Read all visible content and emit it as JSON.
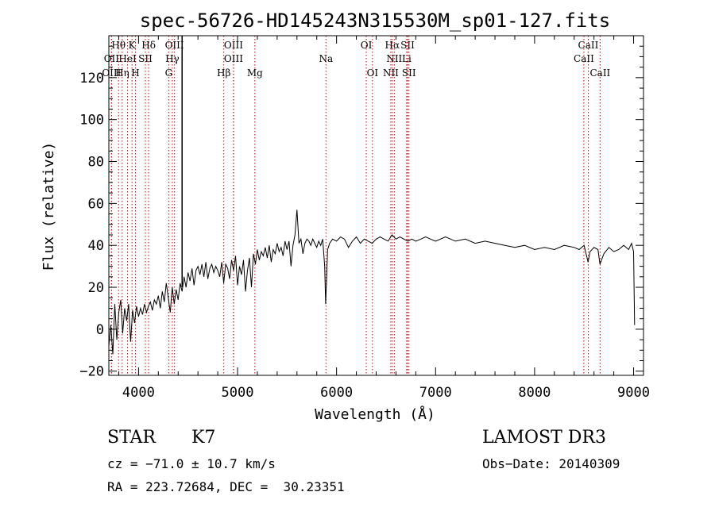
{
  "chart_data": {
    "type": "line",
    "title": "spec-56726-HD145243N315530M_sp01-127.fits",
    "xlabel": "Wavelength (Å)",
    "ylabel": "Flux (relative)",
    "xlim": [
      3700,
      9100
    ],
    "ylim": [
      -22,
      140
    ],
    "xticks": [
      4000,
      5000,
      6000,
      7000,
      8000,
      9000
    ],
    "yticks": [
      -20,
      0,
      20,
      40,
      60,
      80,
      100,
      120
    ],
    "grid": false,
    "series": [
      {
        "name": "spectrum",
        "color": "#000000",
        "x": [
          3700,
          3720,
          3740,
          3760,
          3780,
          3800,
          3820,
          3840,
          3860,
          3880,
          3900,
          3920,
          3940,
          3960,
          3980,
          4000,
          4020,
          4040,
          4060,
          4080,
          4100,
          4120,
          4140,
          4160,
          4180,
          4200,
          4220,
          4240,
          4260,
          4280,
          4300,
          4320,
          4340,
          4360,
          4380,
          4400,
          4420,
          4440,
          4460,
          4480,
          4500,
          4520,
          4540,
          4560,
          4580,
          4600,
          4620,
          4640,
          4660,
          4680,
          4700,
          4720,
          4740,
          4760,
          4780,
          4800,
          4820,
          4840,
          4860,
          4880,
          4900,
          4920,
          4940,
          4960,
          4980,
          5000,
          5020,
          5040,
          5060,
          5080,
          5100,
          5120,
          5140,
          5160,
          5180,
          5200,
          5220,
          5240,
          5260,
          5280,
          5300,
          5320,
          5340,
          5360,
          5380,
          5400,
          5420,
          5440,
          5460,
          5480,
          5500,
          5520,
          5540,
          5560,
          5580,
          5600,
          5620,
          5640,
          5660,
          5680,
          5700,
          5720,
          5740,
          5760,
          5780,
          5800,
          5820,
          5840,
          5860,
          5880,
          5890,
          5900,
          5910,
          5930,
          5960,
          6000,
          6040,
          6080,
          6120,
          6160,
          6200,
          6240,
          6280,
          6320,
          6360,
          6400,
          6440,
          6480,
          6520,
          6560,
          6600,
          6640,
          6680,
          6720,
          6760,
          6800,
          6850,
          6900,
          6950,
          7000,
          7100,
          7200,
          7300,
          7400,
          7500,
          7600,
          7700,
          7800,
          7900,
          8000,
          8100,
          8200,
          8300,
          8400,
          8450,
          8500,
          8540,
          8560,
          8600,
          8640,
          8660,
          8700,
          8750,
          8800,
          8850,
          8900,
          8950,
          8980,
          9000,
          9010
        ],
        "y": [
          -8,
          2,
          -12,
          12,
          -5,
          8,
          14,
          -2,
          10,
          4,
          12,
          -6,
          9,
          3,
          11,
          6,
          10,
          7,
          12,
          8,
          11,
          13,
          9,
          14,
          12,
          16,
          10,
          18,
          13,
          22,
          15,
          8,
          20,
          12,
          19,
          14,
          22,
          18,
          25,
          20,
          27,
          23,
          29,
          21,
          28,
          30,
          26,
          31,
          25,
          32,
          24,
          29,
          31,
          27,
          30,
          28,
          25,
          32,
          22,
          31,
          29,
          24,
          33,
          28,
          35,
          21,
          30,
          26,
          33,
          18,
          28,
          34,
          20,
          36,
          31,
          38,
          33,
          37,
          35,
          39,
          34,
          40,
          32,
          38,
          36,
          41,
          37,
          39,
          35,
          42,
          38,
          42,
          30,
          40,
          45,
          57,
          41,
          43,
          36,
          41,
          43,
          42,
          40,
          43,
          41,
          39,
          42,
          40,
          43,
          30,
          12,
          25,
          38,
          41,
          43,
          42,
          44,
          43,
          39,
          42,
          44,
          41,
          43,
          42,
          41,
          43,
          44,
          43,
          42,
          45,
          43,
          44,
          43,
          42,
          43,
          42,
          43,
          44,
          43,
          42,
          44,
          42,
          43,
          41,
          42,
          41,
          40,
          39,
          40,
          38,
          39,
          38,
          40,
          39,
          38,
          40,
          32,
          37,
          39,
          38,
          31,
          36,
          39,
          37,
          38,
          40,
          38,
          41,
          37,
          2
        ]
      }
    ],
    "spectral_lines": [
      {
        "label": "Hθ",
        "x": 3798,
        "row": 1
      },
      {
        "label": "OII",
        "x": 3727,
        "row": 2
      },
      {
        "label": "OIII",
        "x": 3727,
        "row": 3
      },
      {
        "label": "K",
        "x": 3934,
        "row": 1
      },
      {
        "label": "HeI",
        "x": 3889,
        "row": 2
      },
      {
        "label": "Hη",
        "x": 3835,
        "row": 3
      },
      {
        "label": "H",
        "x": 3969,
        "row": 3
      },
      {
        "label": "SII",
        "x": 4069,
        "row": 2
      },
      {
        "label": "Hδ",
        "x": 4102,
        "row": 1
      },
      {
        "label": "OIII",
        "x": 4363,
        "row": 1
      },
      {
        "label": "Hγ",
        "x": 4341,
        "row": 2
      },
      {
        "label": "G",
        "x": 4305,
        "row": 3
      },
      {
        "label": "OIII",
        "x": 4959,
        "row": 1
      },
      {
        "label": "OIII",
        "x": 4959,
        "row": 2
      },
      {
        "label": "Hβ",
        "x": 4861,
        "row": 3
      },
      {
        "label": "Mg",
        "x": 5175,
        "row": 3
      },
      {
        "label": "Na",
        "x": 5893,
        "row": 2
      },
      {
        "label": "OI",
        "x": 6300,
        "row": 1
      },
      {
        "label": "OI",
        "x": 6363,
        "row": 3
      },
      {
        "label": "Hα",
        "x": 6563,
        "row": 1
      },
      {
        "label": "SII",
        "x": 6717,
        "row": 1
      },
      {
        "label": "NII",
        "x": 6583,
        "row": 2
      },
      {
        "label": "Li",
        "x": 6708,
        "row": 2
      },
      {
        "label": "NII",
        "x": 6548,
        "row": 3
      },
      {
        "label": "SII",
        "x": 6731,
        "row": 3
      },
      {
        "label": "CaII",
        "x": 8542,
        "row": 1
      },
      {
        "label": "CaII",
        "x": 8498,
        "row": 2
      },
      {
        "label": "CaII",
        "x": 8662,
        "row": 3
      }
    ],
    "spike_x": 4440
  },
  "info": {
    "object_class": "STAR",
    "subclass": "K7",
    "survey": "LAMOST DR3",
    "cz": "cz = −71.0 ± 10.7 km/s",
    "obs_date": "Obs−Date: 20140309",
    "coords": "RA = 223.72684, DEC =  30.23351"
  },
  "colors": {
    "line_marker": "#cc0000",
    "spectrum": "#000000"
  }
}
